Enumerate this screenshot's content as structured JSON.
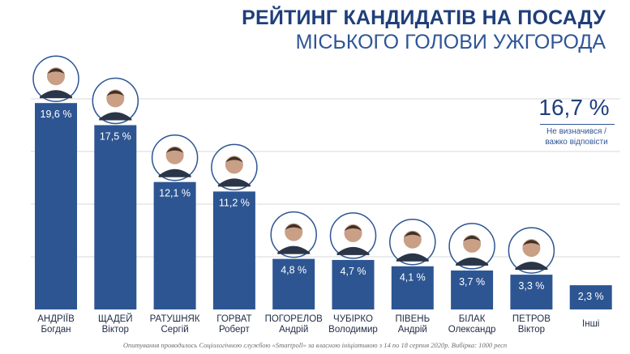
{
  "title_line1": "РЕЙТИНГ КАНДИДАТІВ НА ПОСАДУ",
  "title_line2": "МІСЬКОГО ГОЛОВИ УЖГОРОДА",
  "undecided": {
    "value_label": "16,7 %",
    "caption_line1": "Не визначився /",
    "caption_line2": "важко відповісти"
  },
  "footnote": "Опитування проводилось Соціологічною службою «Smartpoll» за власною ініціативою з 14 по 18 серпня 2020р. Вибірка: 1000 респ",
  "colors": {
    "bar": "#2d5592",
    "title": "#1f3f7a",
    "grid": "#d9d9d9",
    "photo_border": "#2d5592"
  },
  "chart_data": {
    "type": "bar",
    "ylim": [
      0,
      20
    ],
    "grid": true,
    "categories": [
      [
        "АНДРІЇВ",
        "Богдан"
      ],
      [
        "ЩАДЕЙ",
        "Віктор"
      ],
      [
        "РАТУШНЯК",
        "Сергій"
      ],
      [
        "ГОРВАТ",
        "Роберт"
      ],
      [
        "ПОГОРЕЛОВ",
        "Андрій"
      ],
      [
        "ЧУБІРКО",
        "Володимир"
      ],
      [
        "ПІВЕНЬ",
        "Андрій"
      ],
      [
        "БІЛАК",
        "Олександр"
      ],
      [
        "ПЕТРОВ",
        "Віктор"
      ],
      [
        "Інші"
      ]
    ],
    "values": [
      19.6,
      17.5,
      12.1,
      11.2,
      4.8,
      4.7,
      4.1,
      3.7,
      3.3,
      2.3
    ],
    "data_labels": [
      "19,6 %",
      "17,5 %",
      "12,1 %",
      "11,2 %",
      "4,8 %",
      "4,7 %",
      "4,1 %",
      "3,7 %",
      "3,3 %",
      "2,3 %"
    ],
    "photos": [
      true,
      true,
      true,
      true,
      true,
      true,
      true,
      true,
      true,
      false
    ]
  }
}
